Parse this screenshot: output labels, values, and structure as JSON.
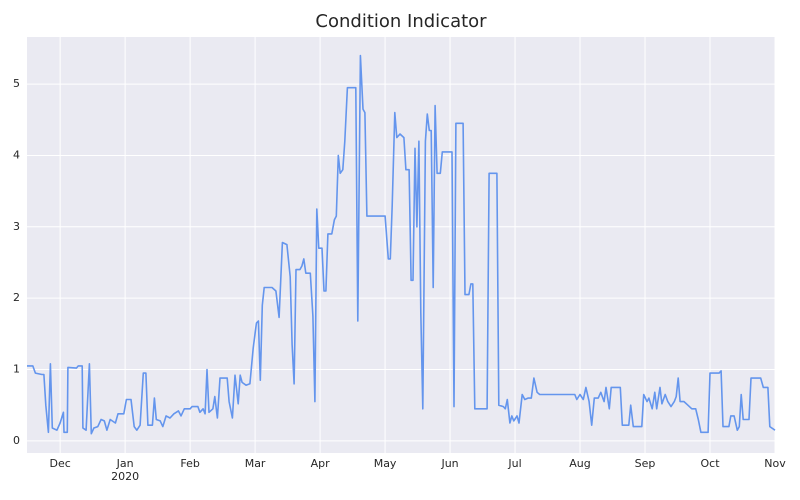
{
  "chart_data": {
    "type": "line",
    "title": "Condition Indicator",
    "x": [
      11.49,
      11.58,
      11.62,
      11.72,
      11.75,
      11.78,
      11.82,
      11.85,
      11.88,
      11.95,
      12.0,
      12.05,
      12.06,
      12.11,
      12.12,
      12.25,
      12.28,
      12.34,
      12.35,
      12.4,
      12.45,
      12.48,
      12.52,
      12.58,
      12.63,
      12.68,
      12.72,
      12.77,
      12.85,
      12.89,
      12.98,
      13.02,
      13.09,
      13.14,
      13.18,
      13.23,
      13.28,
      13.32,
      13.35,
      13.42,
      13.45,
      13.48,
      13.54,
      13.58,
      13.63,
      13.69,
      13.75,
      13.82,
      13.86,
      13.91,
      14.0,
      14.03,
      14.12,
      14.15,
      14.2,
      14.23,
      14.26,
      14.29,
      14.35,
      14.38,
      14.42,
      14.46,
      14.57,
      14.6,
      14.65,
      14.69,
      14.74,
      14.77,
      14.8,
      14.86,
      14.92,
      14.97,
      15.02,
      15.05,
      15.08,
      15.11,
      15.14,
      15.26,
      15.32,
      15.37,
      15.42,
      15.49,
      15.54,
      15.57,
      15.6,
      15.63,
      15.69,
      15.72,
      15.75,
      15.78,
      15.85,
      15.89,
      15.92,
      15.95,
      15.98,
      16.03,
      16.06,
      16.09,
      16.12,
      16.18,
      16.22,
      16.25,
      16.28,
      16.31,
      16.35,
      16.38,
      16.42,
      16.51,
      16.55,
      16.58,
      16.62,
      16.66,
      16.69,
      16.72,
      16.92,
      17.0,
      17.05,
      17.08,
      17.11,
      17.15,
      17.18,
      17.23,
      17.29,
      17.32,
      17.37,
      17.4,
      17.43,
      17.46,
      17.49,
      17.52,
      17.55,
      17.58,
      17.62,
      17.65,
      17.68,
      17.71,
      17.74,
      17.77,
      17.8,
      17.85,
      17.88,
      18.03,
      18.06,
      18.09,
      18.2,
      18.23,
      18.29,
      18.32,
      18.35,
      18.38,
      18.57,
      18.6,
      18.72,
      18.75,
      18.82,
      18.85,
      18.88,
      18.92,
      18.95,
      18.98,
      19.03,
      19.06,
      19.11,
      19.15,
      19.2,
      19.25,
      19.29,
      19.34,
      19.38,
      19.69,
      19.92,
      19.95,
      20.0,
      20.05,
      20.09,
      20.14,
      20.18,
      20.22,
      20.28,
      20.32,
      20.37,
      20.4,
      20.45,
      20.48,
      20.62,
      20.65,
      20.75,
      20.78,
      20.82,
      20.95,
      20.98,
      21.03,
      21.06,
      21.11,
      21.15,
      21.18,
      21.23,
      21.26,
      21.31,
      21.35,
      21.4,
      21.45,
      21.48,
      21.51,
      21.54,
      21.6,
      21.66,
      21.72,
      21.78,
      21.82,
      21.86,
      21.97,
      22.0,
      22.14,
      22.17,
      22.2,
      22.29,
      22.32,
      22.37,
      22.42,
      22.45,
      22.48,
      22.51,
      22.6,
      22.63,
      22.78,
      22.82,
      22.89,
      22.92,
      23.0
    ],
    "series": [
      {
        "color": "#6495ed",
        "values": [
          1.05,
          1.05,
          0.95,
          0.93,
          0.93,
          0.5,
          0.12,
          1.08,
          0.18,
          0.15,
          0.25,
          0.4,
          0.12,
          0.12,
          1.03,
          1.02,
          1.05,
          1.05,
          0.18,
          0.15,
          1.08,
          0.1,
          0.18,
          0.2,
          0.3,
          0.28,
          0.15,
          0.3,
          0.25,
          0.38,
          0.38,
          0.58,
          0.58,
          0.2,
          0.15,
          0.22,
          0.95,
          0.95,
          0.22,
          0.22,
          0.6,
          0.3,
          0.28,
          0.2,
          0.35,
          0.32,
          0.38,
          0.42,
          0.35,
          0.45,
          0.45,
          0.48,
          0.48,
          0.4,
          0.45,
          0.38,
          1.0,
          0.4,
          0.45,
          0.62,
          0.32,
          0.88,
          0.88,
          0.55,
          0.32,
          0.92,
          0.52,
          0.92,
          0.82,
          0.78,
          0.8,
          1.3,
          1.65,
          1.68,
          0.85,
          1.9,
          2.15,
          2.15,
          2.1,
          1.73,
          2.78,
          2.75,
          2.3,
          1.35,
          0.8,
          2.4,
          2.4,
          2.45,
          2.55,
          2.35,
          2.35,
          1.75,
          0.55,
          3.25,
          2.7,
          2.7,
          2.1,
          2.1,
          2.9,
          2.9,
          3.1,
          3.15,
          4.0,
          3.75,
          3.8,
          4.2,
          4.95,
          4.95,
          4.95,
          1.68,
          5.4,
          4.65,
          4.6,
          3.15,
          3.15,
          3.15,
          2.55,
          2.55,
          3.3,
          4.6,
          4.25,
          4.3,
          4.25,
          3.8,
          3.8,
          2.25,
          2.25,
          4.1,
          3.0,
          4.2,
          1.8,
          0.45,
          4.2,
          4.58,
          4.35,
          4.35,
          2.15,
          4.7,
          3.75,
          3.75,
          4.05,
          4.05,
          0.48,
          4.45,
          4.45,
          2.05,
          2.05,
          2.2,
          2.2,
          0.45,
          0.45,
          3.75,
          3.75,
          0.5,
          0.48,
          0.45,
          0.58,
          0.25,
          0.35,
          0.28,
          0.35,
          0.25,
          0.65,
          0.58,
          0.6,
          0.6,
          0.88,
          0.68,
          0.65,
          0.65,
          0.65,
          0.58,
          0.65,
          0.58,
          0.75,
          0.55,
          0.22,
          0.6,
          0.6,
          0.68,
          0.55,
          0.75,
          0.45,
          0.75,
          0.75,
          0.22,
          0.22,
          0.5,
          0.2,
          0.2,
          0.65,
          0.55,
          0.6,
          0.45,
          0.68,
          0.45,
          0.75,
          0.52,
          0.65,
          0.55,
          0.48,
          0.55,
          0.62,
          0.88,
          0.55,
          0.55,
          0.5,
          0.45,
          0.45,
          0.3,
          0.12,
          0.12,
          0.95,
          0.95,
          0.98,
          0.2,
          0.2,
          0.35,
          0.35,
          0.15,
          0.2,
          0.65,
          0.3,
          0.3,
          0.88,
          0.88,
          0.75,
          0.75,
          0.2,
          0.15
        ]
      }
    ],
    "xlim": [
      11.49,
      23.0
    ],
    "xticks": [
      {
        "value": 12,
        "label": "Dec"
      },
      {
        "value": 13,
        "label": "Jan\n2020"
      },
      {
        "value": 14,
        "label": "Feb"
      },
      {
        "value": 15,
        "label": "Mar"
      },
      {
        "value": 16,
        "label": "Apr"
      },
      {
        "value": 17,
        "label": "May"
      },
      {
        "value": 18,
        "label": "Jun"
      },
      {
        "value": 19,
        "label": "Jul"
      },
      {
        "value": 20,
        "label": "Aug"
      },
      {
        "value": 21,
        "label": "Sep"
      },
      {
        "value": 22,
        "label": "Oct"
      },
      {
        "value": 23,
        "label": "Nov"
      }
    ],
    "ylim": [
      -0.17,
      5.66
    ],
    "yticks": [
      0,
      1,
      2,
      3,
      4,
      5
    ],
    "grid": true
  }
}
